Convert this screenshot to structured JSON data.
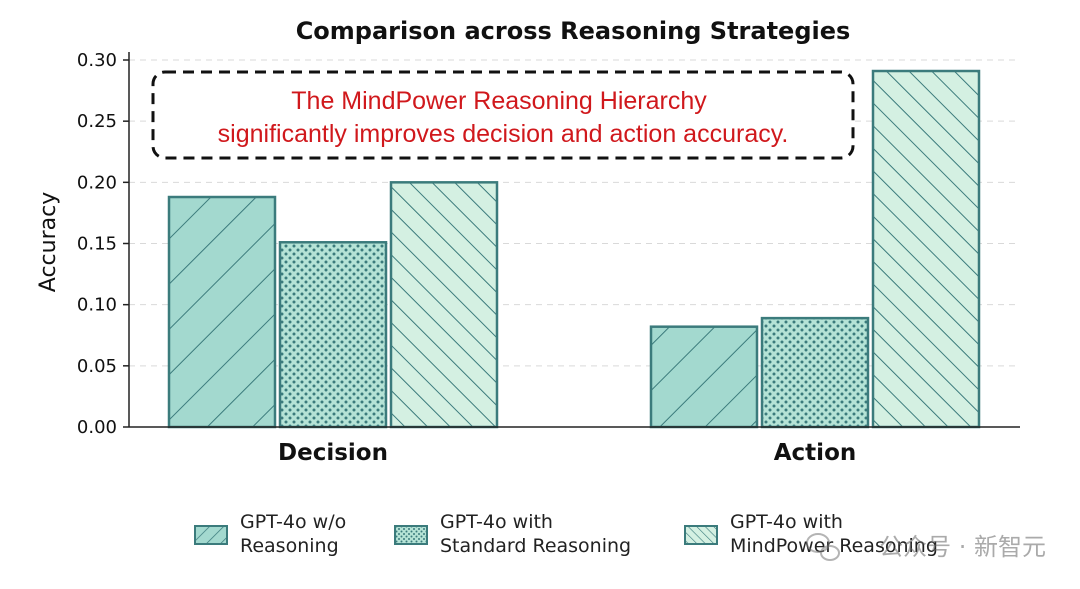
{
  "chart_data": {
    "type": "bar",
    "title": "Comparison across Reasoning Strategies",
    "ylabel": "Accuracy",
    "xlabel": "",
    "categories": [
      "Decision",
      "Action"
    ],
    "ylim": [
      0,
      0.3
    ],
    "yticks": [
      "0.00",
      "0.05",
      "0.10",
      "0.15",
      "0.20",
      "0.25",
      "0.30"
    ],
    "grid": "horizontal-dashed",
    "legend_position": "bottom",
    "series": [
      {
        "name": "GPT-4o w/o Reasoning",
        "legend_lines": [
          "GPT-4o w/o",
          "Reasoning"
        ],
        "values": [
          0.188,
          0.082
        ],
        "color": "#a3d9cf",
        "hatch": "forward-diagonal"
      },
      {
        "name": "GPT-4o with Standard Reasoning",
        "legend_lines": [
          "GPT-4o with",
          "Standard Reasoning"
        ],
        "values": [
          0.151,
          0.089
        ],
        "color": "#b5e3d6",
        "hatch": "dots"
      },
      {
        "name": "GPT-4o with MindPower Reasoning",
        "legend_lines": [
          "GPT-4o with",
          "MindPower Reasoning"
        ],
        "values": [
          0.2,
          0.291
        ],
        "color": "#d4f0e2",
        "hatch": "back-diagonal"
      }
    ],
    "annotation": {
      "lines": [
        "The MindPower Reasoning Hierarchy",
        "significantly improves decision and action accuracy."
      ],
      "color": "#d0181c"
    },
    "edge_color": "#3b7b7c"
  },
  "watermark": "公众号 · 新智元"
}
